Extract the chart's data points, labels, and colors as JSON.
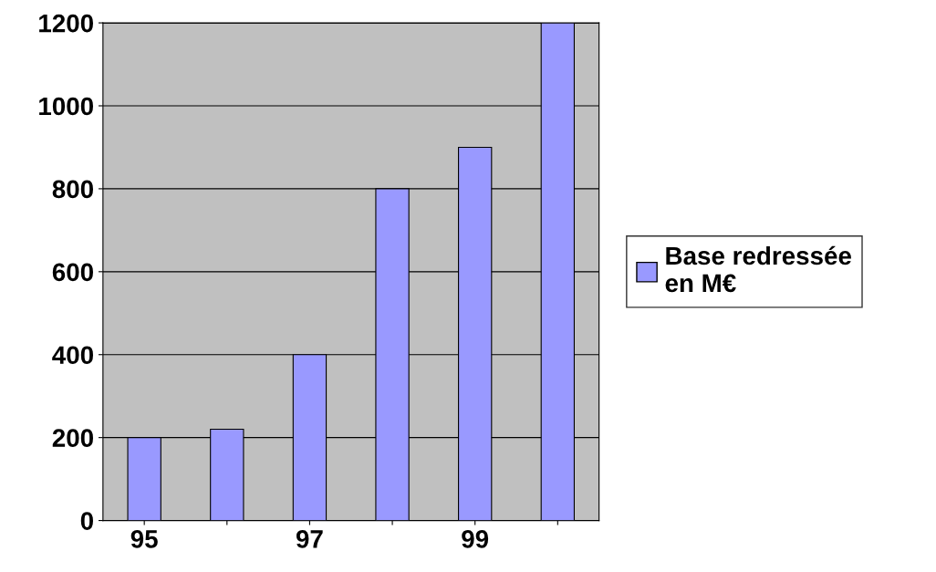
{
  "chart_data": {
    "type": "bar",
    "categories": [
      "95",
      null,
      "97",
      null,
      "99",
      null
    ],
    "series": [
      {
        "name": "Base redressée\nen M€",
        "color": "#9999ff",
        "values": [
          200,
          220,
          400,
          800,
          900,
          1200
        ]
      }
    ],
    "ylim": [
      0,
      1200
    ],
    "yticks": [
      0,
      200,
      400,
      600,
      800,
      1000,
      1200
    ],
    "grid": "y",
    "legend": "right"
  }
}
